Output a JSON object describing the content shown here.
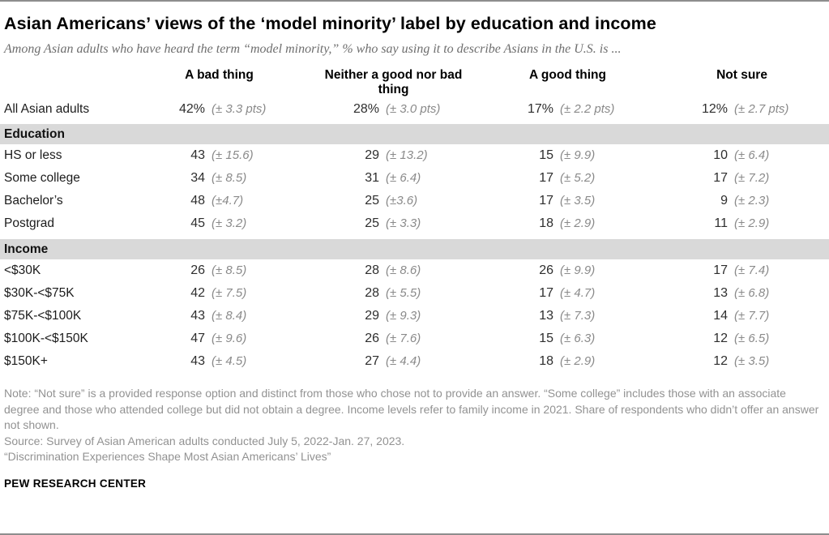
{
  "header": {
    "title": "Asian Americans’ views of the ‘model minority’ label by education and income",
    "subtitle": "Among Asian adults who have heard the term “model minority,” % who say using it to describe Asians in the U.S. is ..."
  },
  "table": {
    "columns": [
      "A bad thing",
      "Neither a good nor bad thing",
      "A good thing",
      "Not sure"
    ],
    "summary": {
      "label": "All Asian adults",
      "cells": [
        {
          "value": "42%",
          "moe": "(± 3.3 pts)"
        },
        {
          "value": "28%",
          "moe": "(± 3.0 pts)"
        },
        {
          "value": "17%",
          "moe": "(± 2.2 pts)"
        },
        {
          "value": "12%",
          "moe": "(± 2.7 pts)"
        }
      ]
    },
    "sections": [
      {
        "title": "Education",
        "rows": [
          {
            "label": "HS or less",
            "cells": [
              {
                "value": "43",
                "moe": "(± 15.6)"
              },
              {
                "value": "29",
                "moe": "(± 13.2)"
              },
              {
                "value": "15",
                "moe": "(± 9.9)"
              },
              {
                "value": "10",
                "moe": "(± 6.4)"
              }
            ]
          },
          {
            "label": "Some college",
            "cells": [
              {
                "value": "34",
                "moe": "(± 8.5)"
              },
              {
                "value": "31",
                "moe": "(± 6.4)"
              },
              {
                "value": "17",
                "moe": "(± 5.2)"
              },
              {
                "value": "17",
                "moe": "(± 7.2)"
              }
            ]
          },
          {
            "label": "Bachelor’s",
            "cells": [
              {
                "value": "48",
                "moe": "(±4.7)"
              },
              {
                "value": "25",
                "moe": "(±3.6)"
              },
              {
                "value": "17",
                "moe": "(± 3.5)"
              },
              {
                "value": "9",
                "moe": "(± 2.3)"
              }
            ]
          },
          {
            "label": "Postgrad",
            "cells": [
              {
                "value": "45",
                "moe": "(± 3.2)"
              },
              {
                "value": "25",
                "moe": "(± 3.3)"
              },
              {
                "value": "18",
                "moe": "(± 2.9)"
              },
              {
                "value": "11",
                "moe": "(± 2.9)"
              }
            ]
          }
        ]
      },
      {
        "title": "Income",
        "rows": [
          {
            "label": "<$30K",
            "cells": [
              {
                "value": "26",
                "moe": "(± 8.5)"
              },
              {
                "value": "28",
                "moe": "(± 8.6)"
              },
              {
                "value": "26",
                "moe": "(± 9.9)"
              },
              {
                "value": "17",
                "moe": "(± 7.4)"
              }
            ]
          },
          {
            "label": "$30K-<$75K",
            "cells": [
              {
                "value": "42",
                "moe": "(± 7.5)"
              },
              {
                "value": "28",
                "moe": "(± 5.5)"
              },
              {
                "value": "17",
                "moe": "(± 4.7)"
              },
              {
                "value": "13",
                "moe": "(± 6.8)"
              }
            ]
          },
          {
            "label": "$75K-<$100K",
            "cells": [
              {
                "value": "43",
                "moe": "(± 8.4)"
              },
              {
                "value": "29",
                "moe": "(± 9.3)"
              },
              {
                "value": "13",
                "moe": "(± 7.3)"
              },
              {
                "value": "14",
                "moe": "(± 7.7)"
              }
            ]
          },
          {
            "label": "$100K-<$150K",
            "cells": [
              {
                "value": "47",
                "moe": "(± 9.6)"
              },
              {
                "value": "26",
                "moe": "(± 7.6)"
              },
              {
                "value": "15",
                "moe": "(± 6.3)"
              },
              {
                "value": "12",
                "moe": "(± 6.5)"
              }
            ]
          },
          {
            "label": "$150K+",
            "cells": [
              {
                "value": "43",
                "moe": "(± 4.5)"
              },
              {
                "value": "27",
                "moe": "(± 4.4)"
              },
              {
                "value": "18",
                "moe": "(± 2.9)"
              },
              {
                "value": "12",
                "moe": "(± 3.5)"
              }
            ]
          }
        ]
      }
    ]
  },
  "chart_data": {
    "type": "table",
    "title": "Asian Americans’ views of the ‘model minority’ label by education and income",
    "subtitle": "Among Asian adults who have heard the term “model minority,” % who say using it to describe Asians in the U.S. is ...",
    "columns": [
      "A bad thing",
      "Neither a good nor bad thing",
      "A good thing",
      "Not sure"
    ],
    "unit": "% (margin of error in pts)",
    "row_groups": [
      {
        "group": "All",
        "rows": [
          {
            "label": "All Asian adults",
            "values_pct": [
              42,
              28,
              17,
              12
            ],
            "moe_pts": [
              3.3,
              3.0,
              2.2,
              2.7
            ]
          }
        ]
      },
      {
        "group": "Education",
        "rows": [
          {
            "label": "HS or less",
            "values_pct": [
              43,
              29,
              15,
              10
            ],
            "moe_pts": [
              15.6,
              13.2,
              9.9,
              6.4
            ]
          },
          {
            "label": "Some college",
            "values_pct": [
              34,
              31,
              17,
              17
            ],
            "moe_pts": [
              8.5,
              6.4,
              5.2,
              7.2
            ]
          },
          {
            "label": "Bachelor’s",
            "values_pct": [
              48,
              25,
              17,
              9
            ],
            "moe_pts": [
              4.7,
              3.6,
              3.5,
              2.3
            ]
          },
          {
            "label": "Postgrad",
            "values_pct": [
              45,
              25,
              18,
              11
            ],
            "moe_pts": [
              3.2,
              3.3,
              2.9,
              2.9
            ]
          }
        ]
      },
      {
        "group": "Income",
        "rows": [
          {
            "label": "<$30K",
            "values_pct": [
              26,
              28,
              26,
              17
            ],
            "moe_pts": [
              8.5,
              8.6,
              9.9,
              7.4
            ]
          },
          {
            "label": "$30K-<$75K",
            "values_pct": [
              42,
              28,
              17,
              13
            ],
            "moe_pts": [
              7.5,
              5.5,
              4.7,
              6.8
            ]
          },
          {
            "label": "$75K-<$100K",
            "values_pct": [
              43,
              29,
              13,
              14
            ],
            "moe_pts": [
              8.4,
              9.3,
              7.3,
              7.7
            ]
          },
          {
            "label": "$100K-<$150K",
            "values_pct": [
              47,
              26,
              15,
              12
            ],
            "moe_pts": [
              9.6,
              7.6,
              6.3,
              6.5
            ]
          },
          {
            "label": "$150K+",
            "values_pct": [
              43,
              27,
              18,
              12
            ],
            "moe_pts": [
              4.5,
              4.4,
              2.9,
              3.5
            ]
          }
        ]
      }
    ]
  },
  "footer": {
    "note": "Note: “Not sure” is a provided response option and distinct from those who chose not to provide an answer. “Some college” includes those with an associate degree and those who attended college but did not obtain a degree. Income levels refer to family income in 2021. Share of respondents who didn’t offer an answer not shown.",
    "source": "Source: Survey of Asian American adults conducted July 5, 2022-Jan. 27, 2023.",
    "report": "“Discrimination Experiences Shape Most Asian Americans’ Lives”",
    "brand": "PEW RESEARCH CENTER"
  },
  "colors": {
    "section_bar": "#d9d9d9",
    "moe_text": "#8a8a8a",
    "note_text": "#929292",
    "rule": "#8e8e8e"
  }
}
